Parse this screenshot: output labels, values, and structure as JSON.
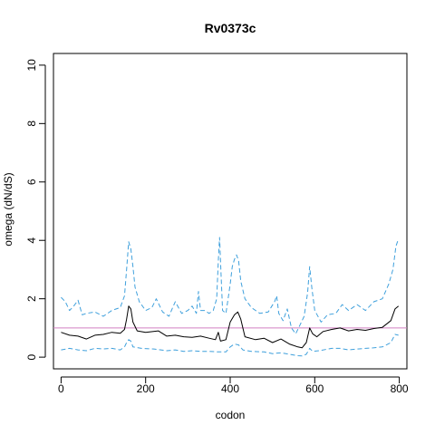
{
  "chart_data": {
    "type": "line",
    "title": "Rv0373c",
    "xlabel": "codon",
    "ylabel": "omega (dN/dS)",
    "xlim": [
      -18,
      818
    ],
    "ylim": [
      -0.4,
      10.4
    ],
    "x_ticks": [
      0,
      200,
      400,
      600,
      800
    ],
    "y_ticks": [
      0,
      2,
      4,
      6,
      8,
      10
    ],
    "x_tick_labels": [
      "0",
      "200",
      "400",
      "600",
      "800"
    ],
    "y_tick_labels": [
      "0",
      "2",
      "4",
      "6",
      "8",
      "10"
    ],
    "grid": false,
    "reference_line": {
      "y": 1,
      "color": "#d17fc2"
    },
    "series": [
      {
        "role": "upper",
        "color": "#3fa0dc",
        "dash": true,
        "points": [
          [
            0,
            2.05
          ],
          [
            10,
            1.9
          ],
          [
            20,
            1.6
          ],
          [
            30,
            1.75
          ],
          [
            40,
            1.95
          ],
          [
            50,
            1.45
          ],
          [
            60,
            1.5
          ],
          [
            80,
            1.55
          ],
          [
            100,
            1.4
          ],
          [
            120,
            1.6
          ],
          [
            140,
            1.7
          ],
          [
            150,
            2.1
          ],
          [
            155,
            3.0
          ],
          [
            160,
            3.95
          ],
          [
            165,
            3.7
          ],
          [
            170,
            3.1
          ],
          [
            175,
            2.4
          ],
          [
            185,
            1.9
          ],
          [
            200,
            1.6
          ],
          [
            215,
            1.7
          ],
          [
            225,
            2.0
          ],
          [
            240,
            1.55
          ],
          [
            255,
            1.4
          ],
          [
            270,
            1.9
          ],
          [
            285,
            1.5
          ],
          [
            300,
            1.6
          ],
          [
            310,
            1.75
          ],
          [
            320,
            1.5
          ],
          [
            325,
            2.25
          ],
          [
            330,
            1.6
          ],
          [
            340,
            1.6
          ],
          [
            350,
            1.5
          ],
          [
            360,
            1.6
          ],
          [
            368,
            2.0
          ],
          [
            372,
            3.3
          ],
          [
            375,
            4.1
          ],
          [
            378,
            3.0
          ],
          [
            382,
            1.6
          ],
          [
            390,
            1.5
          ],
          [
            395,
            2.0
          ],
          [
            400,
            2.5
          ],
          [
            405,
            3.1
          ],
          [
            410,
            3.35
          ],
          [
            415,
            3.5
          ],
          [
            420,
            3.3
          ],
          [
            425,
            2.6
          ],
          [
            435,
            2.0
          ],
          [
            450,
            1.7
          ],
          [
            470,
            1.5
          ],
          [
            490,
            1.55
          ],
          [
            505,
            1.9
          ],
          [
            510,
            2.1
          ],
          [
            515,
            1.5
          ],
          [
            525,
            1.25
          ],
          [
            535,
            1.65
          ],
          [
            545,
            1.0
          ],
          [
            555,
            0.8
          ],
          [
            565,
            1.1
          ],
          [
            575,
            1.4
          ],
          [
            583,
            2.2
          ],
          [
            588,
            3.1
          ],
          [
            593,
            2.4
          ],
          [
            600,
            1.6
          ],
          [
            615,
            1.2
          ],
          [
            630,
            1.45
          ],
          [
            650,
            1.5
          ],
          [
            665,
            1.8
          ],
          [
            680,
            1.6
          ],
          [
            700,
            1.8
          ],
          [
            720,
            1.6
          ],
          [
            740,
            1.9
          ],
          [
            760,
            2.0
          ],
          [
            775,
            2.5
          ],
          [
            785,
            3.0
          ],
          [
            792,
            3.8
          ],
          [
            798,
            4.05
          ]
        ]
      },
      {
        "role": "mean",
        "color": "#000000",
        "dash": false,
        "points": [
          [
            0,
            0.85
          ],
          [
            20,
            0.75
          ],
          [
            40,
            0.72
          ],
          [
            60,
            0.62
          ],
          [
            80,
            0.75
          ],
          [
            100,
            0.78
          ],
          [
            120,
            0.85
          ],
          [
            140,
            0.82
          ],
          [
            150,
            0.95
          ],
          [
            155,
            1.3
          ],
          [
            160,
            1.75
          ],
          [
            165,
            1.65
          ],
          [
            170,
            1.2
          ],
          [
            180,
            0.9
          ],
          [
            200,
            0.85
          ],
          [
            230,
            0.9
          ],
          [
            250,
            0.72
          ],
          [
            270,
            0.75
          ],
          [
            290,
            0.7
          ],
          [
            310,
            0.68
          ],
          [
            330,
            0.72
          ],
          [
            350,
            0.65
          ],
          [
            365,
            0.6
          ],
          [
            372,
            0.85
          ],
          [
            377,
            0.55
          ],
          [
            390,
            0.6
          ],
          [
            400,
            1.2
          ],
          [
            410,
            1.45
          ],
          [
            418,
            1.55
          ],
          [
            425,
            1.3
          ],
          [
            435,
            0.7
          ],
          [
            460,
            0.6
          ],
          [
            480,
            0.65
          ],
          [
            500,
            0.5
          ],
          [
            520,
            0.62
          ],
          [
            540,
            0.45
          ],
          [
            560,
            0.35
          ],
          [
            570,
            0.32
          ],
          [
            580,
            0.5
          ],
          [
            588,
            1.0
          ],
          [
            595,
            0.8
          ],
          [
            605,
            0.7
          ],
          [
            620,
            0.88
          ],
          [
            640,
            0.95
          ],
          [
            660,
            1.0
          ],
          [
            680,
            0.9
          ],
          [
            700,
            0.95
          ],
          [
            720,
            0.92
          ],
          [
            740,
            0.98
          ],
          [
            760,
            1.02
          ],
          [
            780,
            1.25
          ],
          [
            790,
            1.65
          ],
          [
            798,
            1.75
          ]
        ]
      },
      {
        "role": "lower",
        "color": "#3fa0dc",
        "dash": true,
        "points": [
          [
            0,
            0.25
          ],
          [
            20,
            0.3
          ],
          [
            40,
            0.25
          ],
          [
            60,
            0.22
          ],
          [
            80,
            0.3
          ],
          [
            100,
            0.28
          ],
          [
            120,
            0.3
          ],
          [
            140,
            0.25
          ],
          [
            150,
            0.35
          ],
          [
            155,
            0.5
          ],
          [
            160,
            0.6
          ],
          [
            165,
            0.55
          ],
          [
            170,
            0.35
          ],
          [
            190,
            0.3
          ],
          [
            220,
            0.28
          ],
          [
            250,
            0.22
          ],
          [
            270,
            0.25
          ],
          [
            290,
            0.2
          ],
          [
            310,
            0.22
          ],
          [
            330,
            0.2
          ],
          [
            350,
            0.2
          ],
          [
            370,
            0.18
          ],
          [
            390,
            0.18
          ],
          [
            400,
            0.35
          ],
          [
            410,
            0.45
          ],
          [
            420,
            0.42
          ],
          [
            430,
            0.25
          ],
          [
            450,
            0.2
          ],
          [
            480,
            0.18
          ],
          [
            500,
            0.12
          ],
          [
            520,
            0.15
          ],
          [
            540,
            0.1
          ],
          [
            560,
            0.05
          ],
          [
            570,
            0.04
          ],
          [
            580,
            0.1
          ],
          [
            588,
            0.3
          ],
          [
            595,
            0.2
          ],
          [
            610,
            0.22
          ],
          [
            640,
            0.3
          ],
          [
            660,
            0.3
          ],
          [
            680,
            0.25
          ],
          [
            700,
            0.28
          ],
          [
            720,
            0.3
          ],
          [
            740,
            0.32
          ],
          [
            760,
            0.35
          ],
          [
            780,
            0.5
          ],
          [
            790,
            0.78
          ],
          [
            798,
            0.75
          ]
        ]
      }
    ]
  }
}
